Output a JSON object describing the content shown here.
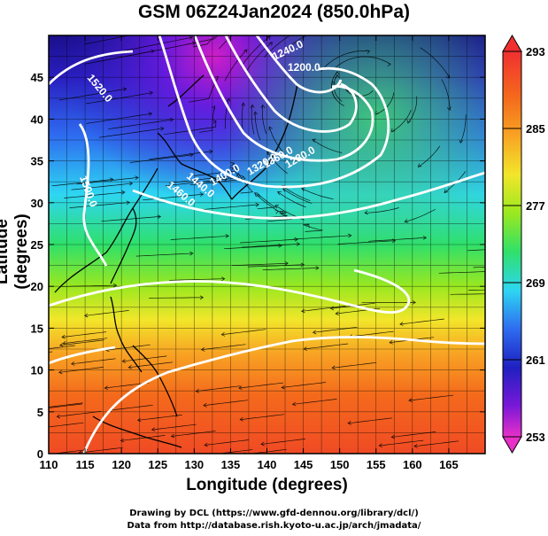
{
  "title": "GSM 06Z24Jan2024 (850.0hPa)",
  "axes": {
    "xlabel": "Longitude (degrees)",
    "ylabel": "Latitude  (degrees)",
    "xticks": [
      "110",
      "115",
      "120",
      "125",
      "130",
      "135",
      "140",
      "145",
      "150",
      "155",
      "160",
      "165"
    ],
    "yticks": [
      "0",
      "5",
      "10",
      "15",
      "20",
      "25",
      "30",
      "35",
      "40",
      "45"
    ],
    "xrange": [
      110,
      170
    ],
    "yrange": [
      0,
      50
    ]
  },
  "colorbar": {
    "min": 253,
    "max": 293,
    "labels": [
      "293",
      "285",
      "277",
      "269",
      "261",
      "253"
    ]
  },
  "contours": {
    "color": "#ffffff",
    "labels": [
      "1520.0",
      "1240.0",
      "1200.0",
      "1440.0",
      "1460.0",
      "1400.0",
      "1320.0",
      "1280.0",
      "1360.0",
      "1500.0"
    ]
  },
  "map": {
    "background": "temperature shading",
    "overlay": "wind streamlines",
    "coastlines": "black"
  },
  "credits": {
    "line1": "Drawing by DCL (https://www.gfd-dennou.org/library/dcl/)",
    "line2": "Data from http://database.rish.kyoto-u.ac.jp/arch/jmadata/"
  }
}
